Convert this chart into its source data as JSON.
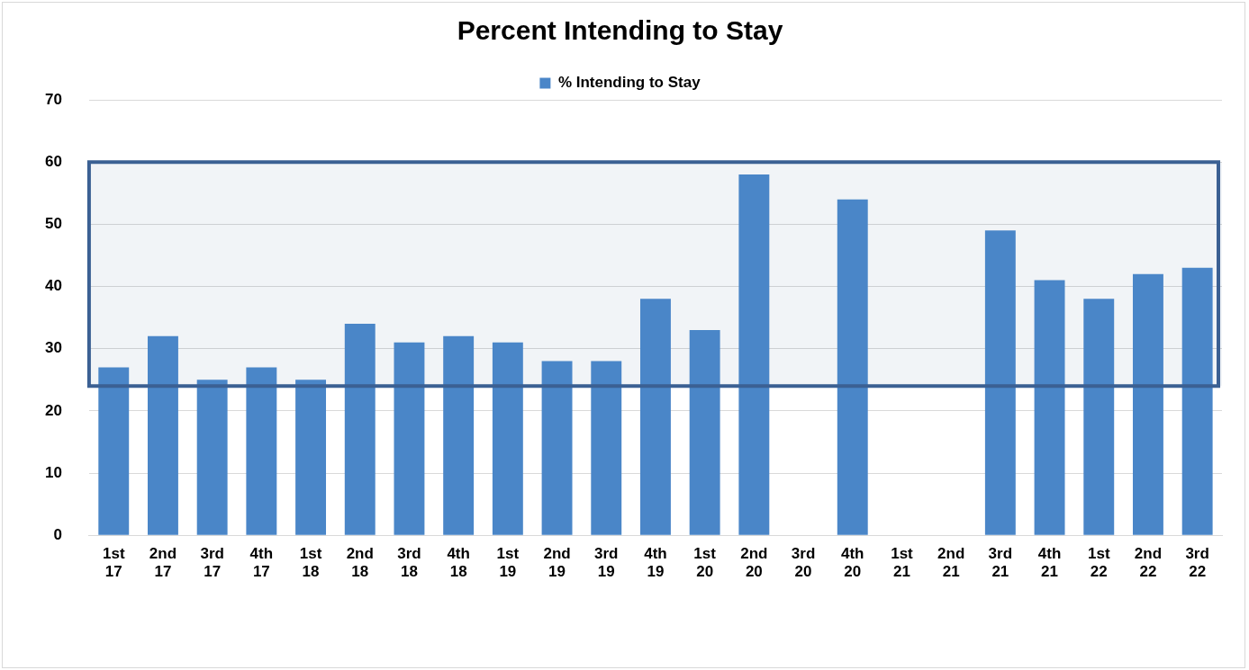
{
  "chart_data": {
    "type": "bar",
    "title": "Percent Intending to Stay",
    "categories": [
      "1st 17",
      "2nd 17",
      "3rd 17",
      "4th 17",
      "1st 18",
      "2nd 18",
      "3rd 18",
      "4th 18",
      "1st 19",
      "2nd 19",
      "3rd 19",
      "4th 19",
      "1st 20",
      "2nd 20",
      "3rd 20",
      "4th 20",
      "1st 21",
      "2nd 21",
      "3rd 21",
      "4th 21",
      "1st 22",
      "2nd 22",
      "3rd 22"
    ],
    "series": [
      {
        "name": "% Intending to Stay",
        "color": "#4a86c8",
        "values": [
          27,
          32,
          25,
          27,
          25,
          34,
          31,
          32,
          31,
          28,
          28,
          38,
          33,
          58,
          null,
          54,
          null,
          null,
          49,
          41,
          38,
          42,
          43
        ]
      }
    ],
    "ylim": [
      0,
      70
    ],
    "yticks": [
      0,
      10,
      20,
      30,
      40,
      50,
      60,
      70
    ],
    "bands": [
      {
        "axis": "y",
        "from": 24,
        "to": 60,
        "color": "#3b6093"
      }
    ],
    "grid": "y",
    "legend": "top"
  }
}
